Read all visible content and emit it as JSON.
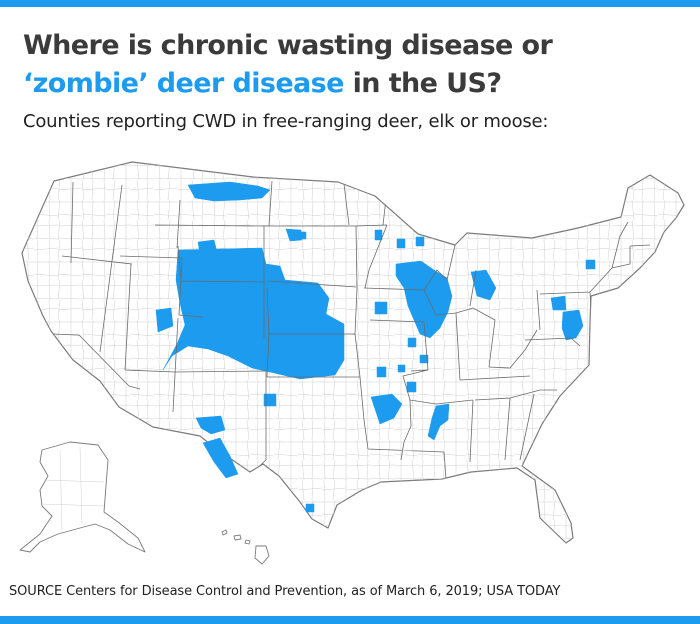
{
  "headline": {
    "line1": "Where is chronic wasting disease or",
    "line2_accent": "‘zombie’ deer disease",
    "line2_rest": " in the US?"
  },
  "subheadline": "Counties reporting CWD in free-ranging deer, elk or moose:",
  "source": "SOURCE Centers for Disease Control and Prevention, as of March 6, 2019; USA TODAY",
  "colors": {
    "accent": "#1c9bef",
    "headline_text": "#3b3b3b",
    "affected_fill": "#1c9bef",
    "county_fill": "#ffffff",
    "county_line": "#c9c9c9",
    "state_line": "#6b6b6b"
  },
  "map": {
    "affected_regions": [
      "Montana north",
      "Montana south-central",
      "Wyoming",
      "Colorado",
      "Utah",
      "Nebraska panhandle",
      "Kansas",
      "New Mexico",
      "Texas",
      "South Dakota",
      "North Dakota",
      "Minnesota",
      "Iowa",
      "Wisconsin",
      "Illinois",
      "Michigan",
      "Missouri",
      "Arkansas",
      "Tennessee",
      "Mississippi",
      "Pennsylvania",
      "Maryland",
      "Virginia",
      "West Virginia",
      "New York"
    ]
  }
}
